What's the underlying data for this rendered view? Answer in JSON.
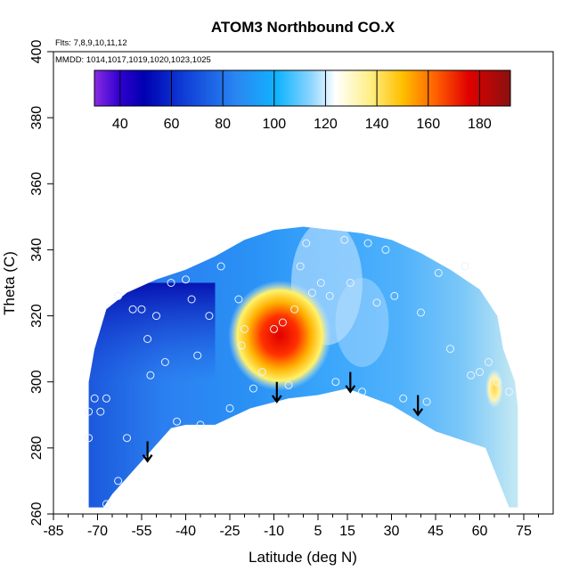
{
  "chart_data": {
    "type": "heatmap",
    "title": "ATOM3 Northbound CO.X",
    "annotations": {
      "flights": "Flts: 7,8,9,10,11,12",
      "dates": "MMDD: 1014,1017,1019,1020,1023,1025"
    },
    "xlabel": "Latitude (deg N)",
    "ylabel": "Theta (C)",
    "xlim": [
      -85,
      85
    ],
    "ylim": [
      260,
      400
    ],
    "x_ticks": [
      -85,
      -70,
      -55,
      -40,
      -25,
      -10,
      5,
      15,
      30,
      45,
      60,
      75
    ],
    "y_ticks": [
      260,
      280,
      300,
      320,
      340,
      360,
      380,
      400
    ],
    "grid": false,
    "colorbar": {
      "range": [
        30,
        192
      ],
      "ticks": [
        40,
        60,
        80,
        100,
        120,
        140,
        160,
        180
      ],
      "placement": "top-left inside plot"
    },
    "region_outline": {
      "top": [
        [
          -73,
          300
        ],
        [
          -71,
          310
        ],
        [
          -67,
          322
        ],
        [
          -60,
          327
        ],
        [
          -50,
          331
        ],
        [
          -40,
          334
        ],
        [
          -30,
          338
        ],
        [
          -20,
          343
        ],
        [
          -10,
          346
        ],
        [
          0,
          347
        ],
        [
          10,
          346
        ],
        [
          20,
          345
        ],
        [
          30,
          343
        ],
        [
          40,
          339
        ],
        [
          50,
          334
        ],
        [
          60,
          328
        ],
        [
          66,
          320
        ],
        [
          68,
          310
        ],
        [
          72,
          300
        ],
        [
          73,
          292
        ],
        [
          73,
          285
        ]
      ],
      "bottom": [
        [
          73,
          285
        ],
        [
          73,
          262
        ],
        [
          70,
          262
        ],
        [
          62,
          280
        ],
        [
          45,
          285
        ],
        [
          30,
          293
        ],
        [
          15,
          298
        ],
        [
          5,
          296
        ],
        [
          -5,
          295
        ],
        [
          -18,
          292
        ],
        [
          -30,
          287
        ],
        [
          -40,
          287
        ],
        [
          -45,
          286
        ],
        [
          -55,
          276
        ],
        [
          -65,
          266
        ],
        [
          -68,
          262
        ],
        [
          -73,
          262
        ]
      ]
    },
    "hotspot": {
      "lat": -8,
      "theta": 314,
      "value": 180
    },
    "hotspot_secondary": {
      "lat": 65,
      "theta": 298,
      "value": 130
    },
    "sample_points": [
      [
        -73,
        283
      ],
      [
        -73,
        291
      ],
      [
        -71,
        295
      ],
      [
        -69,
        291
      ],
      [
        -67,
        295
      ],
      [
        -67,
        263
      ],
      [
        -63,
        270
      ],
      [
        -63,
        326
      ],
      [
        -60,
        283
      ],
      [
        -58,
        322
      ],
      [
        -55,
        322
      ],
      [
        -53,
        313
      ],
      [
        -52,
        302
      ],
      [
        -50,
        320
      ],
      [
        -47,
        306
      ],
      [
        -45,
        330
      ],
      [
        -43,
        288
      ],
      [
        -40,
        331
      ],
      [
        -38,
        325
      ],
      [
        -36,
        308
      ],
      [
        -35,
        287
      ],
      [
        -32,
        320
      ],
      [
        -28,
        335
      ],
      [
        -25,
        292
      ],
      [
        -22,
        325
      ],
      [
        -21,
        311
      ],
      [
        -20,
        316
      ],
      [
        -17,
        298
      ],
      [
        -14,
        303
      ],
      [
        -10,
        316
      ],
      [
        -7,
        318
      ],
      [
        -5,
        299
      ],
      [
        -3,
        322
      ],
      [
        -1,
        335
      ],
      [
        1,
        342
      ],
      [
        3,
        327
      ],
      [
        6,
        330
      ],
      [
        9,
        326
      ],
      [
        11,
        300
      ],
      [
        14,
        343
      ],
      [
        16,
        330
      ],
      [
        20,
        297
      ],
      [
        22,
        342
      ],
      [
        25,
        324
      ],
      [
        28,
        340
      ],
      [
        31,
        326
      ],
      [
        34,
        295
      ],
      [
        40,
        321
      ],
      [
        42,
        294
      ],
      [
        46,
        333
      ],
      [
        50,
        310
      ],
      [
        55,
        335
      ],
      [
        57,
        302
      ],
      [
        60,
        303
      ],
      [
        63,
        306
      ],
      [
        66,
        300
      ],
      [
        70,
        297
      ]
    ],
    "arrows_latitudes": [
      -53,
      -9,
      16,
      39
    ],
    "arrows_theta_span": [
      [
        282,
        276
      ],
      [
        300,
        294
      ],
      [
        303,
        297
      ],
      [
        296,
        290
      ]
    ]
  }
}
